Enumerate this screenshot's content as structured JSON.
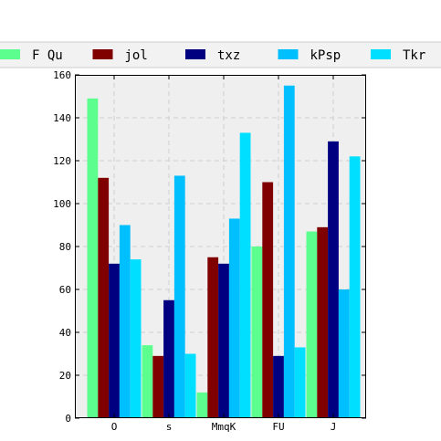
{
  "chart_data": {
    "type": "bar",
    "categories": [
      "O",
      "s",
      "MmqK",
      "FU",
      "J"
    ],
    "series": [
      {
        "name": "F Qu",
        "color": "#5cff8e",
        "values": [
          149,
          34,
          12,
          80,
          87
        ]
      },
      {
        "name": "jol",
        "color": "#800000",
        "values": [
          112,
          29,
          75,
          110,
          89
        ]
      },
      {
        "name": "txz",
        "color": "#000080",
        "values": [
          72,
          55,
          72,
          29,
          129
        ]
      },
      {
        "name": "kPsp",
        "color": "#00bfff",
        "values": [
          90,
          113,
          93,
          155,
          60
        ]
      },
      {
        "name": "Tkr",
        "color": "#00dfff",
        "values": [
          74,
          30,
          133,
          33,
          122
        ]
      }
    ],
    "ylim": [
      0,
      160
    ],
    "yticks": [
      0,
      20,
      40,
      60,
      80,
      100,
      120,
      140,
      160
    ],
    "grid": true,
    "legend": "top",
    "plot_background": "#efefef"
  }
}
